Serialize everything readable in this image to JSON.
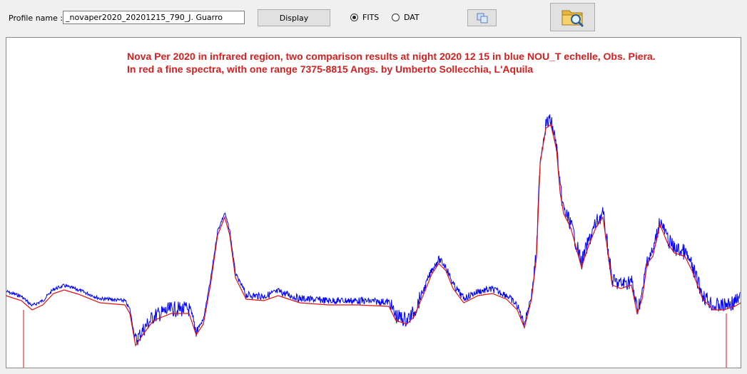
{
  "toolbar": {
    "profile_label": "Profile name :",
    "profile_value": "_novaper2020_20201215_790_J. Guarro",
    "display_button": "Display",
    "radio_fits": "FITS",
    "radio_dat": "DAT"
  },
  "plot": {
    "title_lines": [
      "Nova Per 2020 in infrared region,  two comparison results at night  2020 12 15 in blue  NOU_T echelle, Obs. Piera.",
      "In red a fine spectra, with one range 7375-8815 Angs. by Umberto Sollecchia, L'Aquila"
    ]
  }
}
